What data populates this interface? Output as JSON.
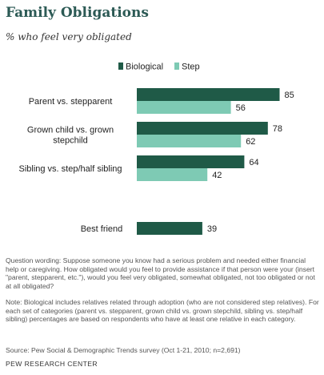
{
  "header": {
    "title": "Family Obligations",
    "subtitle": "% who feel very obligated"
  },
  "chart_data": {
    "type": "bar",
    "orientation": "horizontal",
    "categories": [
      [
        "Parent vs. stepparent"
      ],
      [
        "Grown child vs. grown",
        "stepchild"
      ],
      [
        "Sibling vs. step/half sibling"
      ],
      [
        "Best friend"
      ]
    ],
    "series": [
      {
        "name": "Biological",
        "values": [
          85,
          78,
          64,
          39
        ],
        "color": "#1f5a47"
      },
      {
        "name": "Step",
        "values": [
          56,
          62,
          42,
          null
        ],
        "color": "#7ecab4"
      }
    ],
    "xlim": [
      0,
      100
    ],
    "legend": "top",
    "grid": false
  },
  "notes": {
    "wording": "Question wording: Suppose someone you know had a serious problem and needed either financial help or caregiving. How obligated would you feel to provide assistance if that person were your (insert \"parent, stepparent, etc.\"), would you feel very obligated, somewhat obligated, not too obligated or not at all obligated?",
    "note": "Note: Biological includes relatives related through adoption (who are not considered step relatives). For each set of categories (parent vs. stepparent, grown child vs. grown stepchild, sibling vs. step/half sibling) percentages are based on respondents who have at least one relative in each category.",
    "source": "Source: Pew Social & Demographic Trends survey (Oct 1-21, 2010; n=2,691)",
    "org": "PEW RESEARCH CENTER"
  }
}
